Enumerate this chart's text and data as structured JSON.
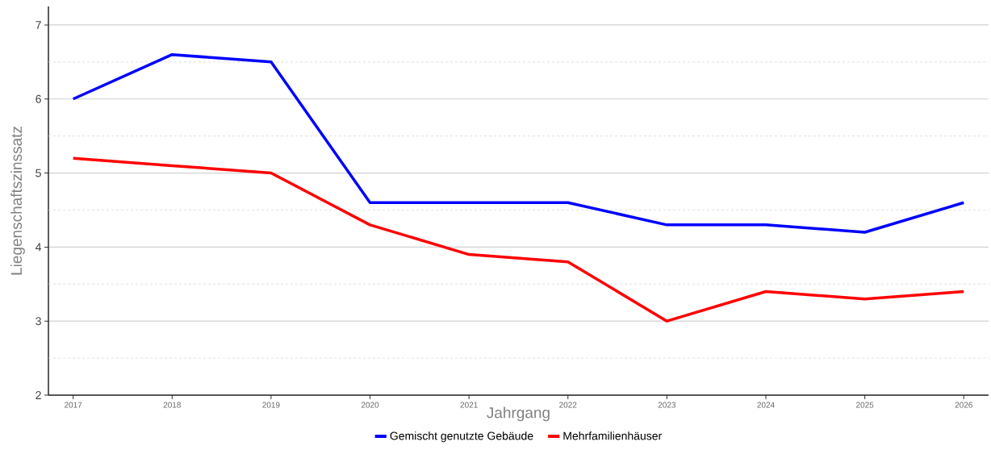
{
  "chart_data": {
    "type": "line",
    "xlabel": "Jahrgang",
    "ylabel": "Liegenschaftszinssatz",
    "x": [
      2017,
      2018,
      2019,
      2020,
      2021,
      2022,
      2023,
      2024,
      2025,
      2026
    ],
    "series": [
      {
        "name": "Gemischt genutzte Gebäude",
        "color": "#0000ff",
        "values": [
          6.0,
          6.6,
          6.5,
          4.6,
          4.6,
          4.6,
          4.3,
          4.3,
          4.2,
          4.6
        ]
      },
      {
        "name": "Mehrfamilienhäuser",
        "color": "#ff0000",
        "values": [
          5.2,
          5.1,
          5.0,
          4.3,
          3.9,
          3.8,
          3.0,
          3.4,
          3.3,
          3.4
        ]
      }
    ],
    "xlim": [
      2016.75,
      2026.25
    ],
    "ylim": [
      2,
      7.25
    ],
    "xticks": [
      2017,
      2018,
      2019,
      2020,
      2021,
      2022,
      2023,
      2024,
      2025,
      2026
    ],
    "yticks": [
      2,
      {
        "value": 2.5,
        "label": null
      },
      3,
      {
        "value": 3.5,
        "label": null
      },
      4,
      {
        "value": 4.5,
        "label": null
      },
      5,
      {
        "value": 5.5,
        "label": null
      },
      6,
      {
        "value": 6.5,
        "label": null
      },
      7
    ],
    "grid": "y",
    "legend": "bottom",
    "marker": "none",
    "line_style": "solid"
  }
}
